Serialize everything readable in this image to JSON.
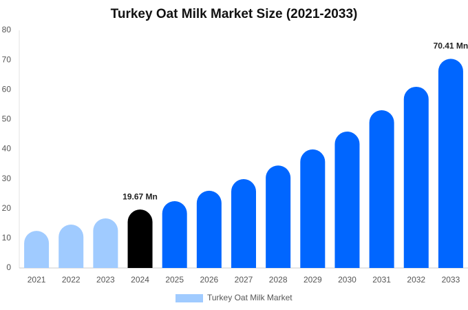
{
  "chart_data": {
    "type": "bar",
    "title": "Turkey Oat Milk Market Size (2021-2033)",
    "categories": [
      "2021",
      "2022",
      "2023",
      "2024",
      "2025",
      "2026",
      "2027",
      "2028",
      "2029",
      "2030",
      "2031",
      "2032",
      "2033"
    ],
    "series": [
      {
        "name": "Turkey Oat Milk Market",
        "color": "#a0cbff",
        "values": [
          12.5,
          14.6,
          16.7,
          19.67,
          22.5,
          26,
          29.9,
          34.5,
          39.9,
          45.9,
          53.1,
          61,
          70.41
        ],
        "value_labels": [
          null,
          null,
          null,
          "19.67 Mn",
          null,
          null,
          null,
          null,
          null,
          null,
          null,
          null,
          "70.41 Mn"
        ]
      }
    ],
    "bar_colors": [
      "#a0cbff",
      "#a0cbff",
      "#a0cbff",
      "#000000",
      "#0066ff",
      "#0066ff",
      "#0066ff",
      "#0066ff",
      "#0066ff",
      "#0066ff",
      "#0066ff",
      "#0066ff",
      "#0066ff"
    ],
    "ylim": [
      0,
      80
    ],
    "yticks": [
      0,
      10,
      20,
      30,
      40,
      50,
      60,
      70,
      80
    ],
    "grid": false,
    "legend": "bottom"
  }
}
